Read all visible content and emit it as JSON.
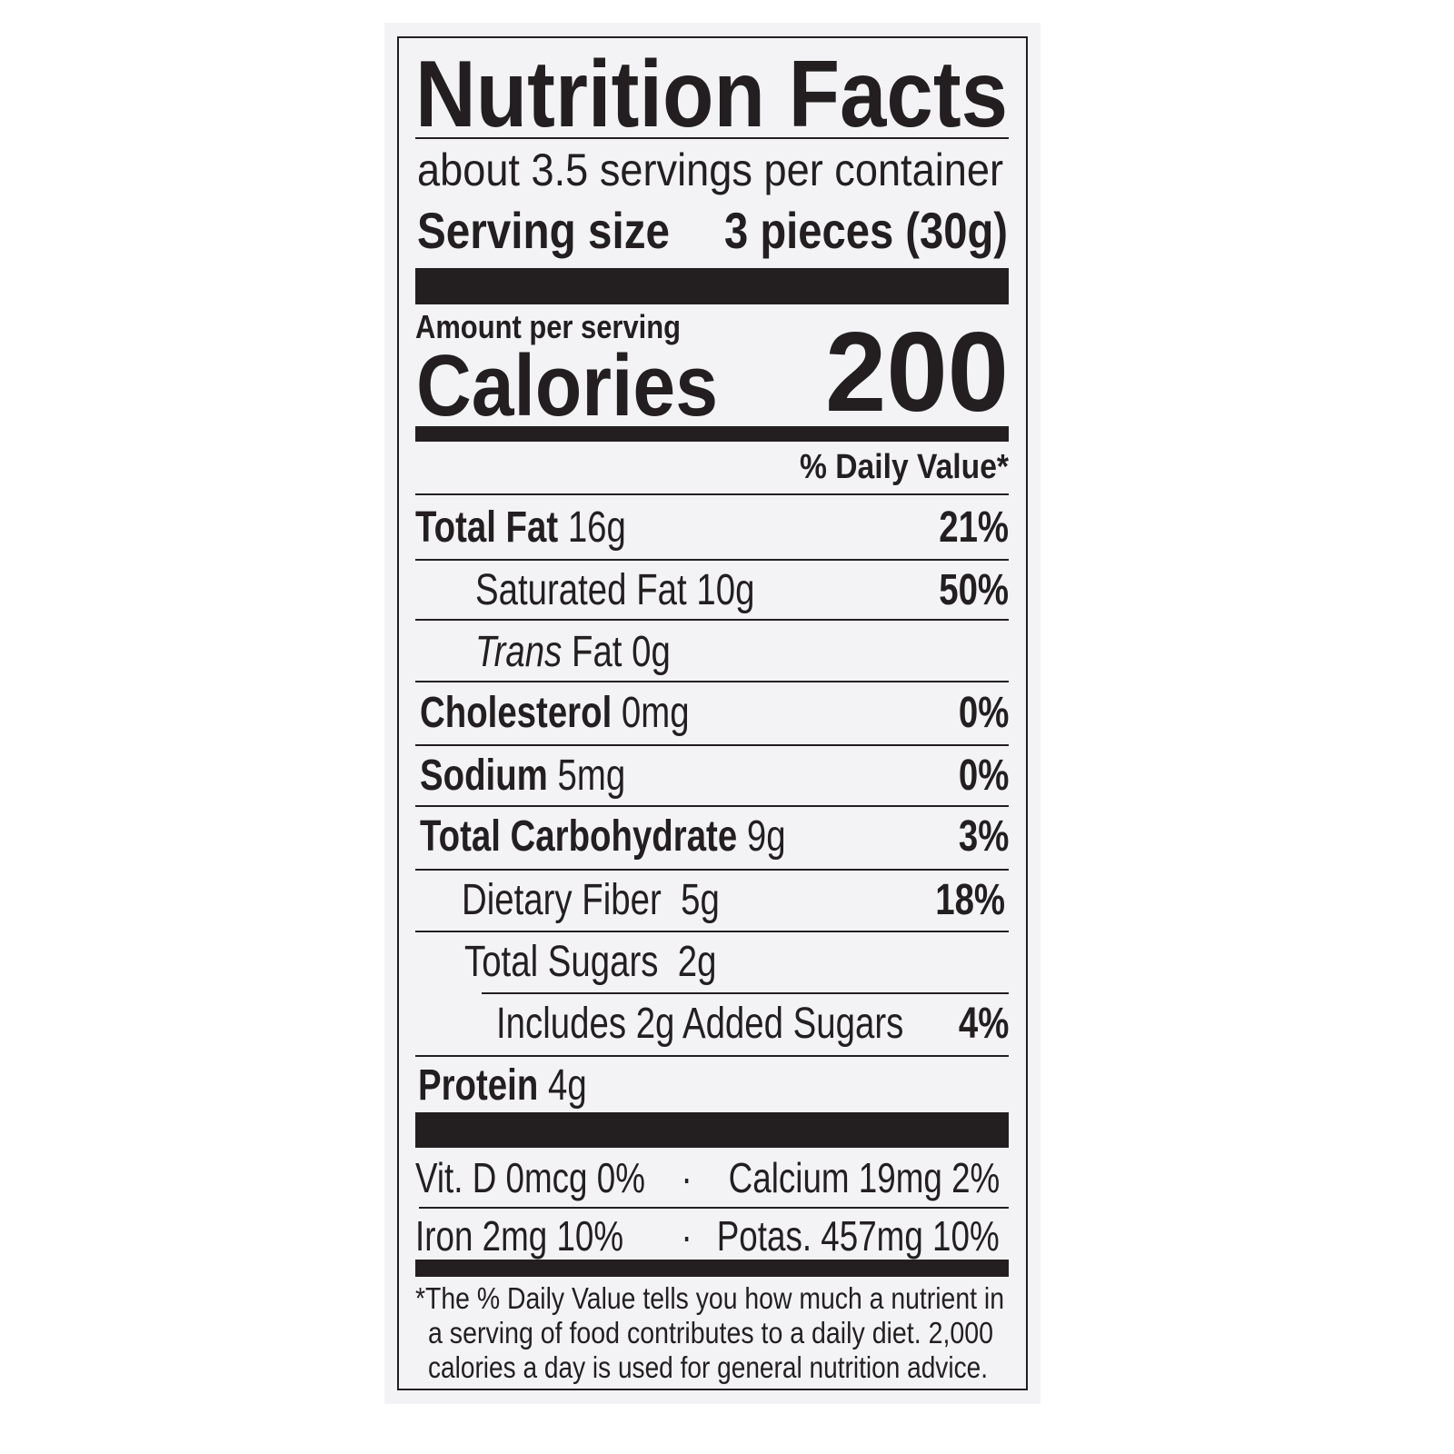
{
  "title": "Nutrition Facts",
  "servings": "about 3.5 servings per container",
  "serving_size": {
    "label": "Serving size",
    "value": "3 pieces (30g)"
  },
  "amount_per_serving": "Amount per serving",
  "calories": {
    "label": "Calories",
    "value": "200"
  },
  "dv_header": "% Daily Value*",
  "nutrients": [
    {
      "name": "Total Fat",
      "amount": "16g",
      "dv": "21%"
    },
    {
      "name": "Saturated Fat",
      "amount": "10g",
      "dv": "50%"
    },
    {
      "name_italic": "Trans",
      "name": "Fat",
      "amount": "0g",
      "dv": ""
    },
    {
      "name": "Cholesterol",
      "amount": "0mg",
      "dv": "0%"
    },
    {
      "name": "Sodium",
      "amount": "5mg",
      "dv": "0%"
    },
    {
      "name": "Total Carbohydrate",
      "amount": "9g",
      "dv": "3%"
    },
    {
      "name": "Dietary Fiber",
      "amount": "5g",
      "dv": "18%"
    },
    {
      "name": "Total Sugars",
      "amount": "2g",
      "dv": ""
    },
    {
      "name": "Includes 2g Added Sugars",
      "amount": "",
      "dv": "4%"
    },
    {
      "name": "Protein",
      "amount": "4g",
      "dv": ""
    }
  ],
  "micronutrients": [
    {
      "left": "Vit. D 0mcg 0%",
      "separator": "·",
      "right": "Calcium 19mg 2%"
    },
    {
      "left": "Iron 2mg 10%",
      "separator": "·",
      "right": "Potas. 457mg 10%"
    }
  ],
  "footnote": [
    "*The % Daily Value tells you how much a nutrient in",
    "a serving of food contributes to a daily diet. 2,000",
    "calories a day is used for general nutrition advice."
  ]
}
